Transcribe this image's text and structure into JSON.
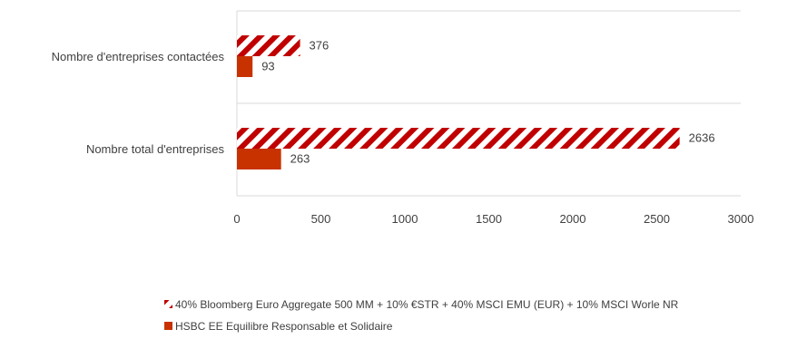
{
  "chart_data": {
    "type": "bar",
    "orientation": "horizontal",
    "categories": [
      "Nombre d'entreprises contactées",
      "Nombre total d'entreprises"
    ],
    "series": [
      {
        "name": "40% Bloomberg Euro Aggregate 500 MM + 10% €STR + 40% MSCI EMU (EUR) + 10% MSCI Worle NR",
        "values": [
          376,
          2636
        ],
        "color": "#c00000",
        "fill": "hatched"
      },
      {
        "name": "HSBC EE Equilibre Responsable et Solidaire",
        "values": [
          93,
          263
        ],
        "color": "#c83200",
        "fill": "solid"
      }
    ],
    "xlim": [
      0,
      3000
    ],
    "xticks": [
      "0",
      "500",
      "1000",
      "1500",
      "2000",
      "2500",
      "3000"
    ],
    "title": "",
    "xlabel": "",
    "ylabel": "",
    "grid": true,
    "legend_position": "bottom"
  }
}
